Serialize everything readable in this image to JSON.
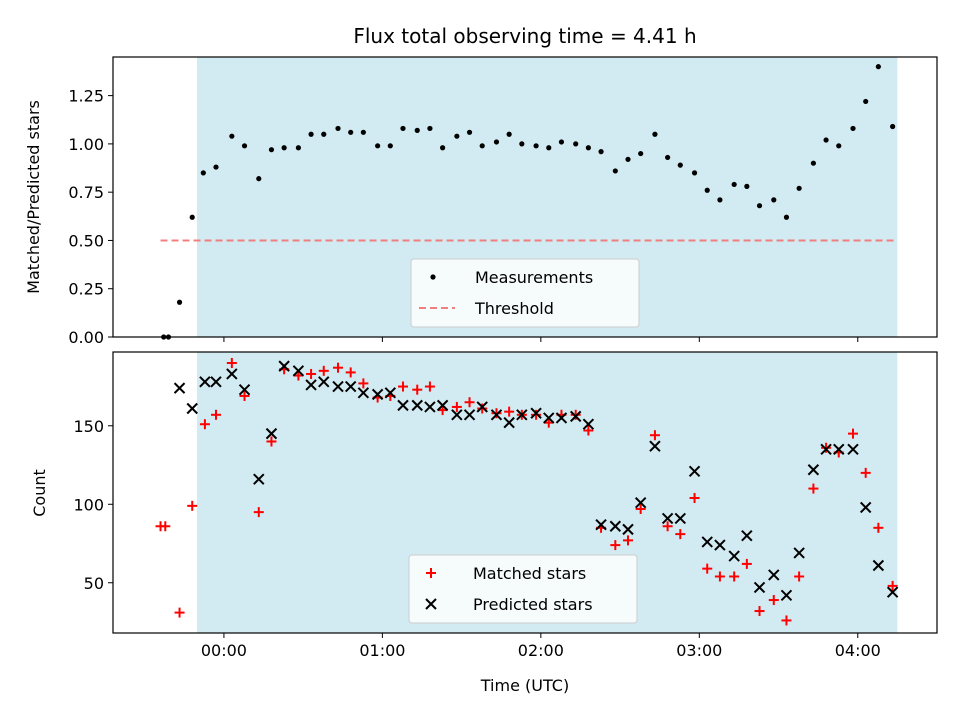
{
  "chart_data": {
    "type": "scatter",
    "title": "Flux total observing time = 4.41 h",
    "xlabel": "Time (UTC)",
    "x_unit": "hours since 00:00 UTC",
    "xlim": [
      -0.7,
      4.5
    ],
    "x_ticks": [
      {
        "value": 0,
        "label": "00:00"
      },
      {
        "value": 1,
        "label": "01:00"
      },
      {
        "value": 2,
        "label": "02:00"
      },
      {
        "value": 3,
        "label": "03:00"
      },
      {
        "value": 4,
        "label": "04:00"
      }
    ],
    "observing_window": {
      "start": -0.17,
      "end": 4.25,
      "color": "#add8e6"
    },
    "panels": [
      {
        "id": "ratio",
        "ylabel": "Matched/Predicted stars",
        "ylim": [
          0,
          1.45
        ],
        "y_ticks": [
          {
            "value": 0,
            "label": "0.00"
          },
          {
            "value": 0.25,
            "label": "0.25"
          },
          {
            "value": 0.5,
            "label": "0.50"
          },
          {
            "value": 0.75,
            "label": "0.75"
          },
          {
            "value": 1.0,
            "label": "1.00"
          },
          {
            "value": 1.25,
            "label": "1.25"
          }
        ],
        "legend": {
          "position": "lower center",
          "entries": [
            "Measurements",
            "Threshold"
          ]
        },
        "threshold": {
          "name": "Threshold",
          "value": 0.5,
          "x_start": -0.4,
          "x_end": 4.25,
          "color": "#f08080"
        },
        "series": [
          {
            "name": "Measurements",
            "marker": "dot",
            "color": "#000000",
            "points": [
              [
                -0.38,
                0.0
              ],
              [
                -0.35,
                0.0
              ],
              [
                -0.28,
                0.18
              ],
              [
                -0.2,
                0.62
              ],
              [
                -0.13,
                0.85
              ],
              [
                -0.05,
                0.88
              ],
              [
                0.05,
                1.04
              ],
              [
                0.13,
                0.99
              ],
              [
                0.22,
                0.82
              ],
              [
                0.3,
                0.97
              ],
              [
                0.38,
                0.98
              ],
              [
                0.47,
                0.98
              ],
              [
                0.55,
                1.05
              ],
              [
                0.63,
                1.05
              ],
              [
                0.72,
                1.08
              ],
              [
                0.8,
                1.06
              ],
              [
                0.88,
                1.06
              ],
              [
                0.97,
                0.99
              ],
              [
                1.05,
                0.99
              ],
              [
                1.13,
                1.08
              ],
              [
                1.22,
                1.07
              ],
              [
                1.3,
                1.08
              ],
              [
                1.38,
                0.98
              ],
              [
                1.47,
                1.04
              ],
              [
                1.55,
                1.06
              ],
              [
                1.63,
                0.99
              ],
              [
                1.72,
                1.01
              ],
              [
                1.8,
                1.05
              ],
              [
                1.88,
                1.0
              ],
              [
                1.97,
                0.99
              ],
              [
                2.05,
                0.98
              ],
              [
                2.13,
                1.01
              ],
              [
                2.22,
                1.0
              ],
              [
                2.3,
                0.98
              ],
              [
                2.38,
                0.96
              ],
              [
                2.47,
                0.86
              ],
              [
                2.55,
                0.92
              ],
              [
                2.63,
                0.95
              ],
              [
                2.72,
                1.05
              ],
              [
                2.8,
                0.93
              ],
              [
                2.88,
                0.89
              ],
              [
                2.97,
                0.85
              ],
              [
                3.05,
                0.76
              ],
              [
                3.13,
                0.71
              ],
              [
                3.22,
                0.79
              ],
              [
                3.3,
                0.78
              ],
              [
                3.38,
                0.68
              ],
              [
                3.47,
                0.71
              ],
              [
                3.55,
                0.62
              ],
              [
                3.63,
                0.77
              ],
              [
                3.72,
                0.9
              ],
              [
                3.8,
                1.02
              ],
              [
                3.88,
                0.99
              ],
              [
                3.97,
                1.08
              ],
              [
                4.05,
                1.22
              ],
              [
                4.13,
                1.4
              ],
              [
                4.22,
                1.09
              ]
            ]
          }
        ]
      },
      {
        "id": "counts",
        "ylabel": "Count",
        "ylim": [
          18,
          197
        ],
        "y_ticks": [
          {
            "value": 50,
            "label": "50"
          },
          {
            "value": 100,
            "label": "100"
          },
          {
            "value": 150,
            "label": "150"
          }
        ],
        "legend": {
          "position": "lower center",
          "entries": [
            "Matched stars",
            "Predicted stars"
          ]
        },
        "series": [
          {
            "name": "Matched stars",
            "marker": "plus",
            "color": "#ff0000",
            "points": [
              [
                -0.4,
                86
              ],
              [
                -0.37,
                86
              ],
              [
                -0.28,
                31
              ],
              [
                -0.2,
                99
              ],
              [
                -0.12,
                151
              ],
              [
                -0.05,
                157
              ],
              [
                0.05,
                190
              ],
              [
                0.13,
                169
              ],
              [
                0.22,
                95
              ],
              [
                0.3,
                140
              ],
              [
                0.38,
                186
              ],
              [
                0.47,
                182
              ],
              [
                0.55,
                183
              ],
              [
                0.63,
                185
              ],
              [
                0.72,
                187
              ],
              [
                0.8,
                184
              ],
              [
                0.88,
                177
              ],
              [
                0.97,
                168
              ],
              [
                1.05,
                169
              ],
              [
                1.13,
                175
              ],
              [
                1.22,
                173
              ],
              [
                1.3,
                175
              ],
              [
                1.38,
                160
              ],
              [
                1.47,
                162
              ],
              [
                1.55,
                165
              ],
              [
                1.63,
                161
              ],
              [
                1.72,
                158
              ],
              [
                1.8,
                159
              ],
              [
                1.88,
                157
              ],
              [
                1.97,
                157
              ],
              [
                2.05,
                152
              ],
              [
                2.13,
                157
              ],
              [
                2.22,
                157
              ],
              [
                2.3,
                147
              ],
              [
                2.38,
                85
              ],
              [
                2.47,
                74
              ],
              [
                2.55,
                77
              ],
              [
                2.63,
                97
              ],
              [
                2.72,
                144
              ],
              [
                2.8,
                86
              ],
              [
                2.88,
                81
              ],
              [
                2.97,
                104
              ],
              [
                3.05,
                59
              ],
              [
                3.13,
                54
              ],
              [
                3.22,
                54
              ],
              [
                3.3,
                62
              ],
              [
                3.38,
                32
              ],
              [
                3.47,
                39
              ],
              [
                3.55,
                26
              ],
              [
                3.63,
                54
              ],
              [
                3.72,
                110
              ],
              [
                3.8,
                136
              ],
              [
                3.88,
                133
              ],
              [
                3.97,
                145
              ],
              [
                4.05,
                120
              ],
              [
                4.13,
                85
              ],
              [
                4.22,
                48
              ]
            ]
          },
          {
            "name": "Predicted stars",
            "marker": "x",
            "color": "#000000",
            "points": [
              [
                -0.28,
                174
              ],
              [
                -0.2,
                161
              ],
              [
                -0.12,
                178
              ],
              [
                -0.05,
                178
              ],
              [
                0.05,
                183
              ],
              [
                0.13,
                173
              ],
              [
                0.22,
                116
              ],
              [
                0.3,
                145
              ],
              [
                0.38,
                188
              ],
              [
                0.47,
                185
              ],
              [
                0.55,
                176
              ],
              [
                0.63,
                178
              ],
              [
                0.72,
                175
              ],
              [
                0.8,
                175
              ],
              [
                0.88,
                171
              ],
              [
                0.97,
                170
              ],
              [
                1.05,
                171
              ],
              [
                1.13,
                163
              ],
              [
                1.22,
                163
              ],
              [
                1.3,
                162
              ],
              [
                1.38,
                163
              ],
              [
                1.47,
                157
              ],
              [
                1.55,
                157
              ],
              [
                1.63,
                162
              ],
              [
                1.72,
                157
              ],
              [
                1.8,
                152
              ],
              [
                1.88,
                157
              ],
              [
                1.97,
                158
              ],
              [
                2.05,
                155
              ],
              [
                2.13,
                155
              ],
              [
                2.22,
                156
              ],
              [
                2.3,
                151
              ],
              [
                2.38,
                87
              ],
              [
                2.47,
                86
              ],
              [
                2.55,
                84
              ],
              [
                2.63,
                101
              ],
              [
                2.72,
                137
              ],
              [
                2.8,
                91
              ],
              [
                2.88,
                91
              ],
              [
                2.97,
                121
              ],
              [
                3.05,
                76
              ],
              [
                3.13,
                74
              ],
              [
                3.22,
                67
              ],
              [
                3.3,
                80
              ],
              [
                3.38,
                47
              ],
              [
                3.47,
                55
              ],
              [
                3.55,
                42
              ],
              [
                3.63,
                69
              ],
              [
                3.72,
                122
              ],
              [
                3.8,
                135
              ],
              [
                3.88,
                135
              ],
              [
                3.97,
                135
              ],
              [
                4.05,
                98
              ],
              [
                4.13,
                61
              ],
              [
                4.22,
                44
              ]
            ]
          }
        ]
      }
    ]
  }
}
